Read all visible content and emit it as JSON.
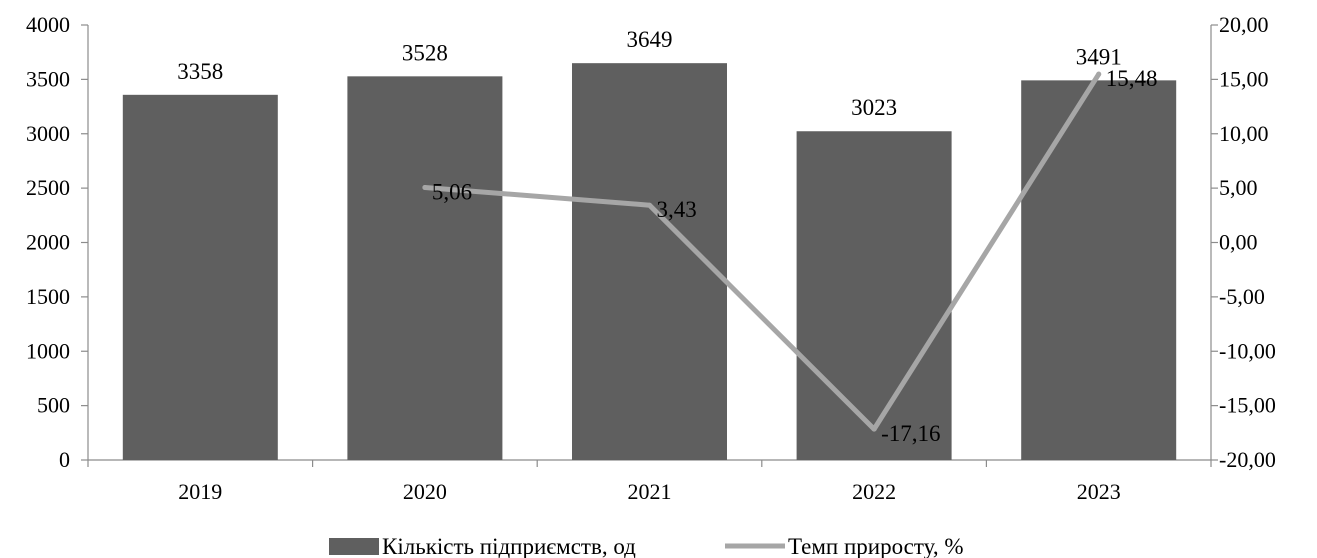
{
  "chart_data": {
    "type": "bar",
    "categories": [
      "2019",
      "2020",
      "2021",
      "2022",
      "2023"
    ],
    "series": [
      {
        "name": "Кількість підприємств, од",
        "type": "bar",
        "axis": "left",
        "color": "#5f5f5f",
        "values": [
          3358,
          3528,
          3649,
          3023,
          3491
        ],
        "labels": [
          "3358",
          "3528",
          "3649",
          "3023",
          "3491"
        ]
      },
      {
        "name": "Темп приросту, %",
        "type": "line",
        "axis": "right",
        "color": "#a6a6a6",
        "values": [
          null,
          5.06,
          3.43,
          -17.16,
          15.48
        ],
        "labels": [
          "",
          "5,06",
          "3,43",
          "-17,16",
          "15,48"
        ]
      }
    ],
    "y_left": {
      "min": 0,
      "max": 4000,
      "ticks": [
        0,
        500,
        1000,
        1500,
        2000,
        2500,
        3000,
        3500,
        4000
      ],
      "tick_labels": [
        "0",
        "500",
        "1000",
        "1500",
        "2000",
        "2500",
        "3000",
        "3500",
        "4000"
      ]
    },
    "y_right": {
      "min": -20,
      "max": 20,
      "ticks": [
        -20,
        -15,
        -10,
        -5,
        0,
        5,
        10,
        15,
        20
      ],
      "tick_labels": [
        "-20,00",
        "-15,00",
        "-10,00",
        "-5,00",
        "0,00",
        "5,00",
        "10,00",
        "15,00",
        "20,00"
      ]
    },
    "grid": false,
    "legend_position": "bottom",
    "title": "",
    "xlabel": "",
    "ylabel": ""
  }
}
